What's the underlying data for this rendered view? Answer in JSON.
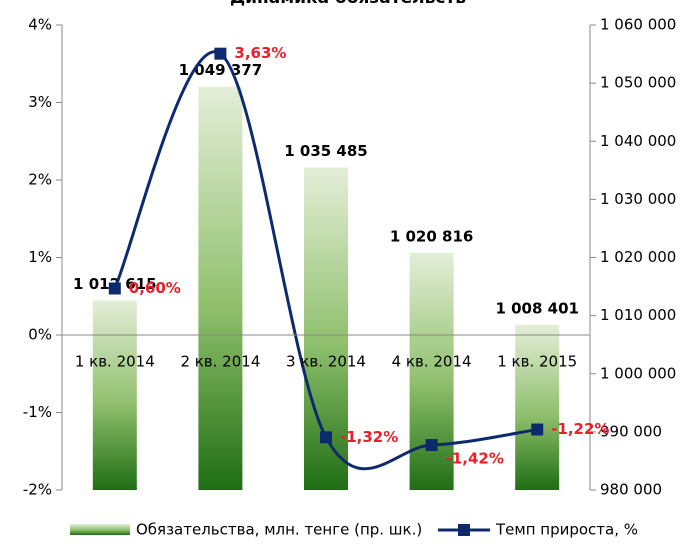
{
  "chart_data": {
    "type": "bar",
    "title": "Динамика обязательств",
    "categories": [
      "1 кв. 2014",
      "2 кв. 2014",
      "3 кв. 2014",
      "4 кв. 2014",
      "1 кв. 2015"
    ],
    "series": [
      {
        "name": "Обязательства, млн. тенге (пр. шк.)",
        "type": "bar",
        "axis": "y2",
        "color": "#2f7d1e",
        "values": [
          1012615,
          1049377,
          1035485,
          1020816,
          1008401
        ],
        "value_labels": [
          "1 012 615",
          "1 049 377",
          "1 035 485",
          "1 020 816",
          "1 008 401"
        ]
      },
      {
        "name": "Темп прироста, %",
        "type": "line",
        "color": "#0e2a6e",
        "values": [
          0.6,
          3.63,
          -1.32,
          -1.42,
          -1.22
        ],
        "value_labels": [
          "0,60%",
          "3,63%",
          "-1,32%",
          "-1,42%",
          "-1,22%"
        ]
      }
    ],
    "ylim": [
      -2,
      4
    ],
    "yticks": [
      {
        "value": -2,
        "label": "-2%"
      },
      {
        "value": -1,
        "label": "-1%"
      },
      {
        "value": 0,
        "label": "0%"
      },
      {
        "value": 1,
        "label": "1%"
      },
      {
        "value": 2,
        "label": "2%"
      },
      {
        "value": 3,
        "label": "3%"
      },
      {
        "value": 4,
        "label": "4%"
      }
    ],
    "y2lim": [
      980000,
      1060000
    ],
    "y2ticks": [
      {
        "value": 980000,
        "label": "980 000"
      },
      {
        "value": 990000,
        "label": "990 000"
      },
      {
        "value": 1000000,
        "label": "1 000 000"
      },
      {
        "value": 1010000,
        "label": "1 010 000"
      },
      {
        "value": 1020000,
        "label": "1 020 000"
      },
      {
        "value": 1030000,
        "label": "1 030 000"
      },
      {
        "value": 1040000,
        "label": "1 040 000"
      },
      {
        "value": 1050000,
        "label": "1 050 000"
      },
      {
        "value": 1060000,
        "label": "1 060 000"
      }
    ]
  }
}
